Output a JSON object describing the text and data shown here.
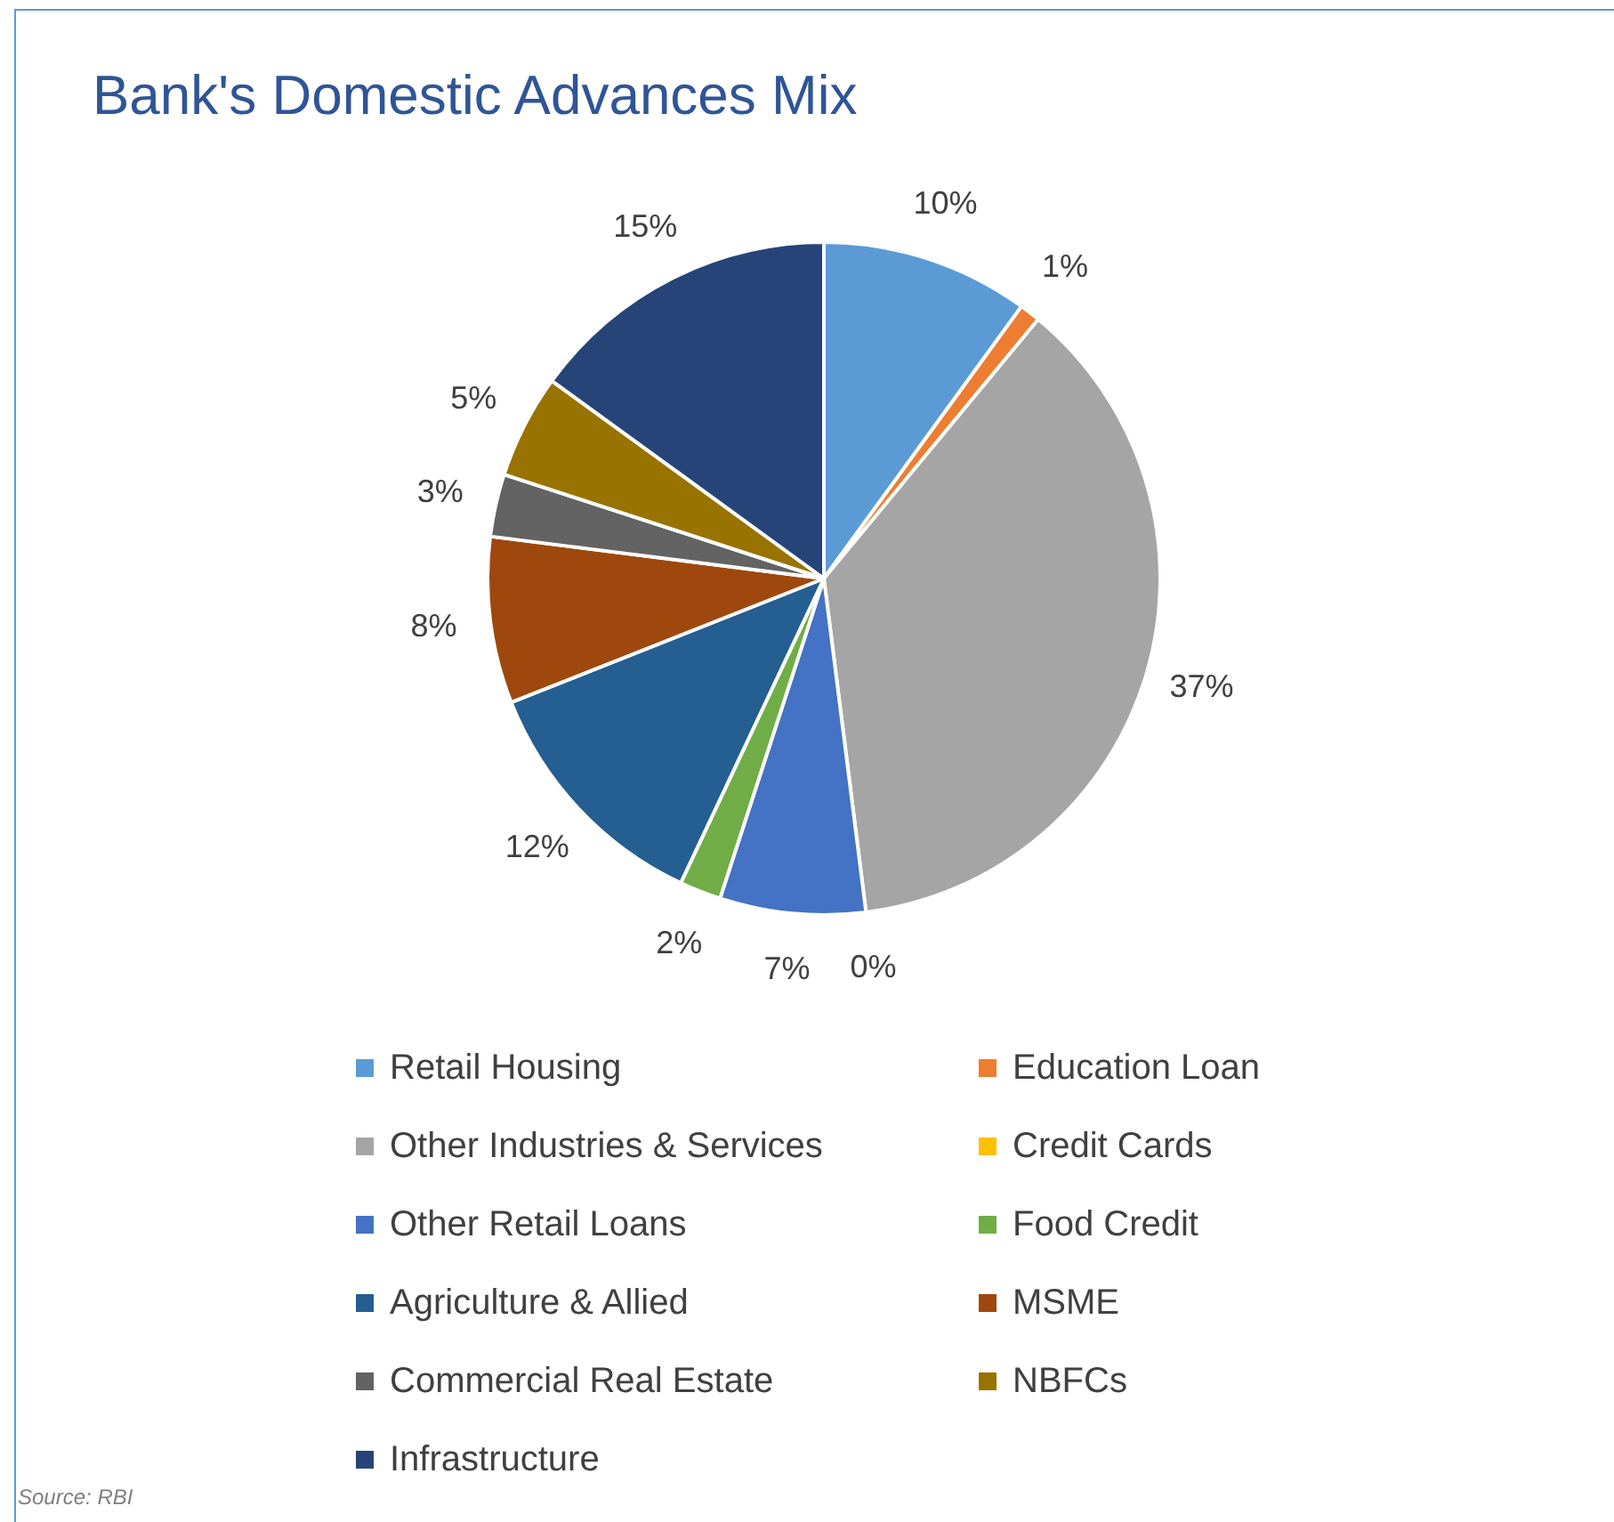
{
  "chart_data": {
    "type": "pie",
    "title": "Bank's Domestic Advances Mix",
    "categories": [
      "Retail Housing",
      "Education Loan",
      "Other Industries & Services",
      "Credit Cards",
      "Other Retail Loans",
      "Food Credit",
      "Agriculture & Allied",
      "MSME",
      "Commercial Real Estate",
      "NBFCs",
      "Infrastructure"
    ],
    "values": [
      10,
      1,
      37,
      0,
      7,
      2,
      12,
      8,
      3,
      5,
      15
    ],
    "colors": [
      "#5b9bd5",
      "#ed7d31",
      "#a5a5a5",
      "#ffc000",
      "#4472c4",
      "#70ad47",
      "#255e91",
      "#9e480e",
      "#636363",
      "#997300",
      "#264478"
    ],
    "value_labels": [
      "10%",
      "1%",
      "37%",
      "0%",
      "7%",
      "2%",
      "12%",
      "8%",
      "3%",
      "5%",
      "15%"
    ],
    "legend": "bottom",
    "annotations": [
      "Source: RBI"
    ]
  }
}
